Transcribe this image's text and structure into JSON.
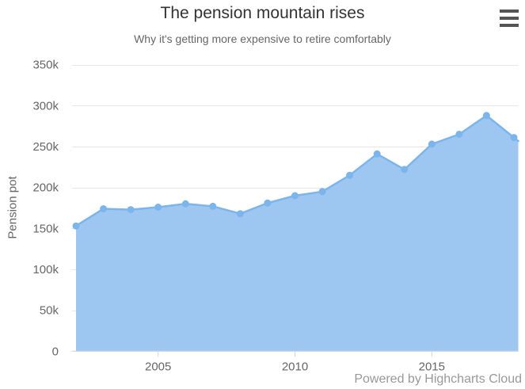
{
  "header": {
    "title": "The pension mountain rises",
    "subtitle": "Why it's getting more expensive to retire comfortably"
  },
  "y_axis": {
    "title": "Pension pot"
  },
  "credits": {
    "label": "Powered by Highcharts Cloud"
  },
  "colors": {
    "series": "#7cb5ec",
    "fill": "#9dc7f1",
    "grid": "#e6e6e6",
    "axis": "#ccd6eb",
    "title": "#333333",
    "text": "#666666",
    "credits": "#999999",
    "menu_icon": "#555555"
  },
  "chart_data": {
    "type": "area",
    "title": "The pension mountain rises",
    "subtitle": "Why it's getting more expensive to retire comfortably",
    "x": [
      2002,
      2003,
      2004,
      2005,
      2006,
      2007,
      2008,
      2009,
      2010,
      2011,
      2012,
      2013,
      2014,
      2015,
      2016,
      2017,
      2018
    ],
    "series": [
      {
        "name": "Pension pot",
        "values": [
          153000,
          174000,
          173000,
          176000,
          180000,
          177000,
          168000,
          181000,
          190000,
          195000,
          215000,
          241000,
          222000,
          253000,
          265000,
          288000,
          261000
        ]
      }
    ],
    "xlabel": "",
    "ylabel": "Pension pot",
    "ylim": [
      0,
      350000
    ],
    "yticks": [
      0,
      50000,
      100000,
      150000,
      200000,
      250000,
      300000,
      350000
    ],
    "ytick_labels": [
      "0",
      "50k",
      "100k",
      "150k",
      "200k",
      "250k",
      "300k",
      "350k"
    ],
    "xticks": [
      2005,
      2010,
      2015
    ],
    "grid": true,
    "legend": false,
    "marker_radius": 4.5
  }
}
